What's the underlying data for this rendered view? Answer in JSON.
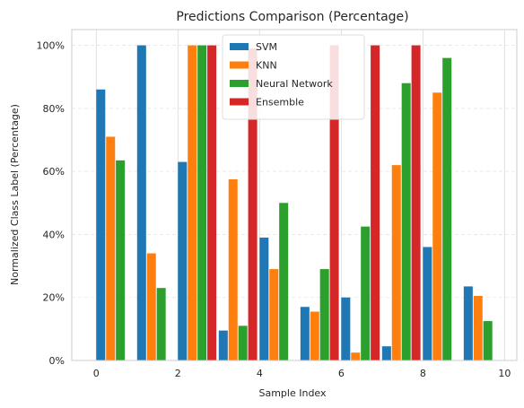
{
  "chart_data": {
    "type": "bar",
    "title": "Predictions Comparison (Percentage)",
    "xlabel": "Sample Index",
    "ylabel": "Normalized Class Label (Percentage)",
    "x": [
      0,
      1,
      2,
      3,
      4,
      5,
      6,
      7,
      8,
      9
    ],
    "xlim": [
      -0.6,
      10.3
    ],
    "ylim": [
      0,
      105
    ],
    "xticks": [
      "0",
      "2",
      "4",
      "6",
      "8",
      "10"
    ],
    "yticks": [
      "0%",
      "20%",
      "40%",
      "60%",
      "80%",
      "100%"
    ],
    "grid": true,
    "legend_position": "top-center",
    "series": [
      {
        "name": "SVM",
        "color": "#1f77b4",
        "values": [
          86,
          100,
          63,
          9.5,
          39,
          17,
          20,
          4.5,
          36,
          23.5
        ]
      },
      {
        "name": "KNN",
        "color": "#ff7f0e",
        "values": [
          71,
          34,
          100,
          57.5,
          29,
          15.5,
          2.5,
          62,
          85,
          20.5
        ]
      },
      {
        "name": "Neural Network",
        "color": "#2ca02c",
        "values": [
          63.5,
          23,
          100,
          11,
          50,
          29,
          42.5,
          88,
          96,
          12.5
        ]
      },
      {
        "name": "Ensemble",
        "color": "#d62728",
        "values": [
          0,
          0,
          100,
          99,
          0,
          100,
          100,
          100,
          0,
          0
        ]
      }
    ]
  }
}
